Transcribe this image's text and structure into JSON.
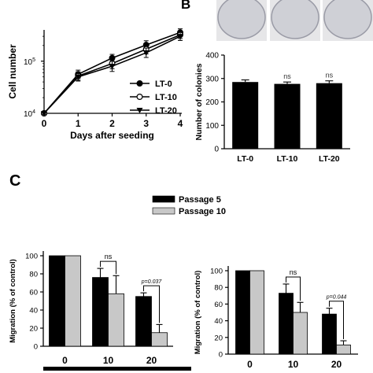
{
  "panel_labels": {
    "b": "B",
    "c": "C"
  },
  "chart_data": [
    {
      "id": "growth",
      "type": "line",
      "xlabel": "Days after seeding",
      "ylabel": "Cell number",
      "yscale": "log",
      "xlim": [
        0,
        4
      ],
      "ylim_exp": [
        4,
        5.6
      ],
      "xticks": [
        "0",
        "1",
        "2",
        "3",
        "4"
      ],
      "yticks": [
        {
          "base": "10",
          "exp": "4",
          "value": 10000
        },
        {
          "base": "10",
          "exp": "5",
          "value": 100000
        }
      ],
      "legend_position": "lower-right",
      "x": [
        0,
        1,
        2,
        3,
        4
      ],
      "series": [
        {
          "name": "LT-0",
          "marker": "filled-circle",
          "values": [
            10000,
            56000,
            115000,
            205000,
            355000
          ],
          "errors": [
            0.02,
            0.08,
            0.07,
            0.08,
            0.07
          ]
        },
        {
          "name": "LT-10",
          "marker": "open-circle",
          "values": [
            10000,
            52000,
            90000,
            170000,
            320000
          ],
          "errors": [
            0.02,
            0.08,
            0.1,
            0.09,
            0.07
          ]
        },
        {
          "name": "LT-20",
          "marker": "filled-triangle-down",
          "values": [
            10000,
            50000,
            80000,
            145000,
            300000
          ],
          "errors": [
            0.02,
            0.08,
            0.1,
            0.09,
            0.08
          ]
        }
      ]
    },
    {
      "id": "colonies",
      "type": "bar",
      "ylabel": "Number of colonies",
      "ylim": [
        0,
        400
      ],
      "yticks": [
        0,
        100,
        200,
        300,
        400
      ],
      "categories": [
        "LT-0",
        "LT-10",
        "LT-20"
      ],
      "values": [
        285,
        277,
        280
      ],
      "errors": [
        9,
        8,
        10
      ],
      "annotations": [
        "",
        "ns",
        "ns"
      ]
    },
    {
      "id": "migration-1",
      "type": "bar",
      "ylabel": "Migration (% of control)",
      "ylim": [
        0,
        100
      ],
      "yticks": [
        0,
        20,
        40,
        60,
        80,
        100
      ],
      "categories": [
        "0",
        "10",
        "20"
      ],
      "legend_position": "top-center",
      "series": [
        {
          "name": "Passage 5",
          "color": "#000000",
          "values": [
            100,
            76,
            55
          ],
          "errors": [
            0,
            10,
            4
          ]
        },
        {
          "name": "Passage 10",
          "color": "#c8c8c8",
          "values": [
            100,
            58,
            15
          ],
          "errors": [
            0,
            20,
            9
          ]
        }
      ],
      "annotations": [
        {
          "group": 1,
          "text": "ns"
        },
        {
          "group": 2,
          "text": "p=0.037"
        }
      ]
    },
    {
      "id": "migration-2",
      "type": "bar",
      "ylabel": "Migration (% of control)",
      "ylim": [
        0,
        100
      ],
      "yticks": [
        0,
        20,
        40,
        60,
        80,
        100
      ],
      "categories": [
        "0",
        "10",
        "20"
      ],
      "series": [
        {
          "name": "Passage 5",
          "color": "#000000",
          "values": [
            100,
            73,
            48
          ],
          "errors": [
            0,
            11,
            7
          ]
        },
        {
          "name": "Passage 10",
          "color": "#c8c8c8",
          "values": [
            100,
            50,
            11
          ],
          "errors": [
            0,
            12,
            5
          ]
        }
      ],
      "annotations": [
        {
          "group": 1,
          "text": "ns"
        },
        {
          "group": 2,
          "text": "p=0.044"
        }
      ]
    }
  ]
}
